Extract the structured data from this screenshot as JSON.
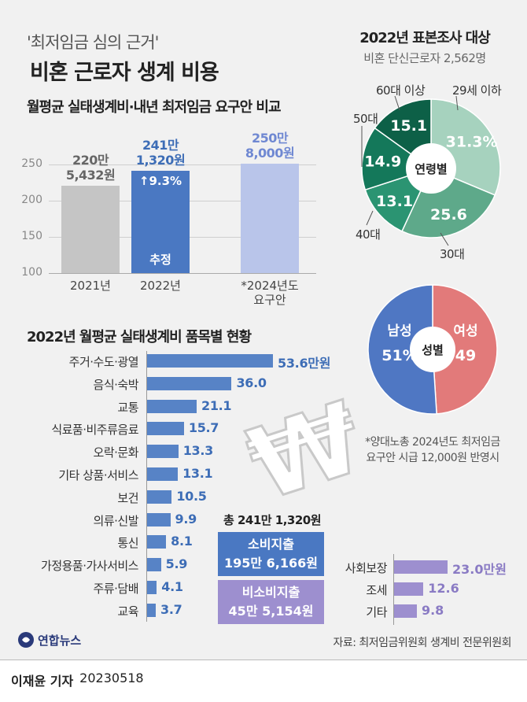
{
  "header": {
    "subtitle": "'최저임금 심의 근거'",
    "title": "비혼 근로자 생계 비용"
  },
  "section1": {
    "title": "월평균 실태생계비·내년 최저임금 요구안 비교"
  },
  "section2": {
    "title": "2022년 월평균 실태생계비 품목별 현황"
  },
  "sample": {
    "title": "2022년 표본조사 대상",
    "subtitle": "비혼 단신근로자 2,562명"
  },
  "chart_data": [
    {
      "type": "bar",
      "title": "월평균 실태생계비·내년 최저임금 요구안 비교",
      "categories": [
        "2021년",
        "2022년",
        "*2024년도 요구안"
      ],
      "category_lines": [
        [
          "2021년"
        ],
        [
          "2022년"
        ],
        [
          "*2024년도",
          "요구안"
        ]
      ],
      "values": [
        220.5432,
        241.132,
        250.8
      ],
      "value_labels": [
        [
          "220만",
          "5,432원"
        ],
        [
          "241만",
          "1,320원"
        ],
        [
          "250만",
          "8,000원"
        ]
      ],
      "bar_annotations": {
        "growth": "↑9.3%",
        "estimate": "추정"
      },
      "yticks": [
        100,
        150,
        200,
        250
      ],
      "ylim": [
        100,
        265
      ],
      "colors": [
        "#c5c5c5",
        "#4a78c2",
        "#b9c5ea"
      ],
      "label_colors": [
        "#666666",
        "#3d6db6",
        "#6f88d2"
      ]
    },
    {
      "type": "bar",
      "orientation": "horizontal",
      "title": "2022년 월평균 실태생계비 품목별 현황",
      "series_name": "소비지출",
      "categories": [
        "주거·수도·광열",
        "음식·숙박",
        "교통",
        "식료품·비주류음료",
        "오락·문화",
        "기타 상품·서비스",
        "보건",
        "의류·신발",
        "통신",
        "가정용품·가사서비스",
        "주류·담배",
        "교육"
      ],
      "values": [
        53.6,
        36.0,
        21.1,
        15.7,
        13.3,
        13.1,
        10.5,
        9.9,
        8.1,
        5.9,
        4.1,
        3.7
      ],
      "value_labels": [
        "53.6만원",
        "36.0",
        "21.1",
        "15.7",
        "13.3",
        "13.1",
        "10.5",
        "9.9",
        "8.1",
        "5.9",
        "4.1",
        "3.7"
      ],
      "unit": "만원"
    },
    {
      "type": "bar",
      "orientation": "horizontal",
      "series_name": "비소비지출",
      "categories": [
        "사회보장",
        "조세",
        "기타"
      ],
      "values": [
        23.0,
        12.6,
        9.8
      ],
      "value_labels": [
        "23.0만원",
        "12.6",
        "9.8"
      ],
      "unit": "만원"
    },
    {
      "type": "pie",
      "center_label": "연령별",
      "categories": [
        "29세 이하",
        "30대",
        "40대",
        "50대",
        "60대 이상"
      ],
      "values": [
        31.3,
        25.6,
        13.1,
        14.9,
        15.1
      ],
      "value_labels": [
        "31.3%",
        "25.6",
        "13.1",
        "14.9",
        "15.1"
      ],
      "colors": [
        "#a6d2be",
        "#5ea98a",
        "#2b9472",
        "#14785a",
        "#0d6047"
      ]
    },
    {
      "type": "pie",
      "center_label": "성별",
      "categories": [
        "여성",
        "남성"
      ],
      "values": [
        49,
        51
      ],
      "value_labels": [
        "49",
        "51%"
      ],
      "colors": [
        "#e27a7a",
        "#4f77c3"
      ]
    }
  ],
  "totals": {
    "total": "총 241만 1,320원",
    "consumption_label": "소비지출",
    "consumption_value": "195만 6,166원",
    "nonconsumption_label": "비소비지출",
    "nonconsumption_value": "45만 5,154원"
  },
  "won_symbol": "₩",
  "note": {
    "line1": "*양대노총 2024년도 최저임금",
    "line2": "요구안 시급 12,000원 반영시"
  },
  "source": "자료: 최저임금위원회 생계비 전문위원회",
  "logo": "연합뉴스",
  "byline": {
    "reporter": "이재윤 기자",
    "date": "20230518"
  },
  "colors": {
    "navy": "#2a3a7a",
    "blue": "#4a78c2",
    "purple": "#9d8fcf"
  }
}
